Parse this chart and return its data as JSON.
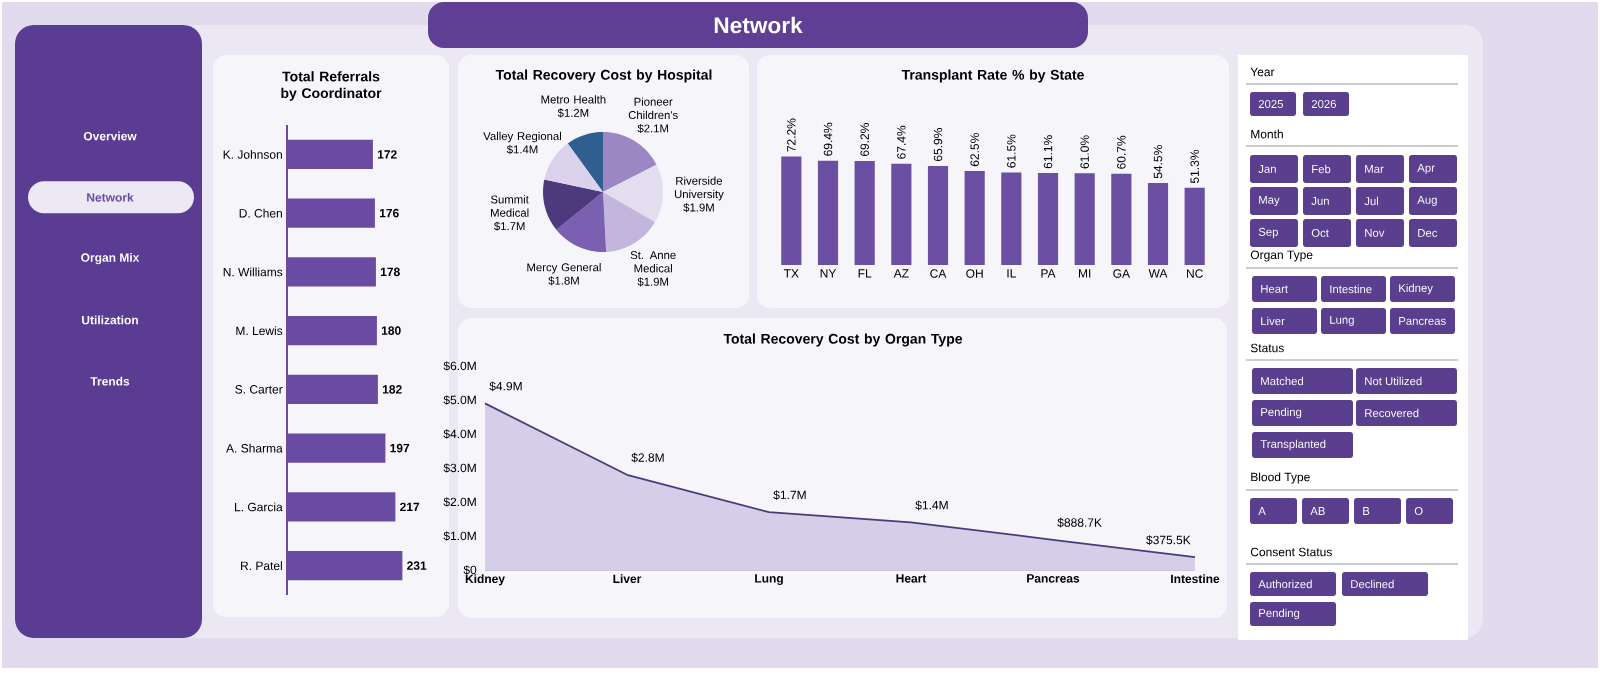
{
  "chart_data": [
    {
      "type": "other",
      "title": "Network"
    },
    {
      "type": "other",
      "annotations": [
        "Overview",
        "Network",
        "Organ Mix",
        "Utilization",
        "Trends"
      ]
    },
    {
      "type": "bar",
      "orientation": "horizontal",
      "title": "Total Referrals by Coordinator",
      "categories": [
        "K. Johnson",
        "D. Chen",
        "N. Williams",
        "M. Lewis",
        "S. Carter",
        "A. Sharma",
        "L. Garcia",
        "R. Patel"
      ],
      "values": [
        172,
        176,
        178,
        180,
        182,
        197,
        217,
        231
      ],
      "color": "#6a4ba3",
      "data_labels": true
    },
    {
      "type": "pie",
      "title": "Total Recovery Cost by Hospital",
      "categories": [
        "Metro Health",
        "Pioneer Children's",
        "Riverside University",
        "St. Anne Medical",
        "Mercy General",
        "Summit Medical",
        "Valley Regional"
      ],
      "values": [
        1.2,
        2.1,
        1.9,
        1.9,
        1.8,
        1.7,
        1.4
      ],
      "value_labels": [
        "$1.2M",
        "$2.1M",
        "$1.9M",
        "$1.9M",
        "$1.8M",
        "$1.7M",
        "$1.4M"
      ],
      "colors": [
        "#2e5f8f",
        "#9b87c4",
        "#e3deef",
        "#c3b6dd",
        "#7b5fb0",
        "#4c3a7d",
        "#d9d2ea"
      ]
    },
    {
      "type": "bar",
      "title": "Transplant Rate % by State",
      "categories": [
        "TX",
        "NY",
        "FL",
        "AZ",
        "CA",
        "OH",
        "IL",
        "PA",
        "MI",
        "GA",
        "WA",
        "NC"
      ],
      "values": [
        72.2,
        69.4,
        69.2,
        67.4,
        65.9,
        62.5,
        61.5,
        61.1,
        61.0,
        60.7,
        54.5,
        51.3
      ],
      "value_labels": [
        "72.2%",
        "69.4%",
        "69.2%",
        "67.4%",
        "65.9%",
        "62.5%",
        "61.5%",
        "61.1%",
        "61.0%",
        "60.7%",
        "54.5%",
        "51.3%"
      ],
      "color": "#6b4fa3"
    },
    {
      "type": "area",
      "title": "Total Recovery Cost by Organ Type",
      "categories": [
        "Kidney",
        "Liver",
        "Lung",
        "Heart",
        "Pancreas",
        "Intestine"
      ],
      "values": [
        4900000,
        2800000,
        1700000,
        1400000,
        888700,
        375500
      ],
      "value_labels": [
        "$4.9M",
        "$2.8M",
        "$1.7M",
        "$1.4M",
        "$888.7K",
        "$375.5K"
      ],
      "color": "#4b3a7a",
      "ylim": [
        0,
        6000000
      ],
      "yticks": [
        {
          "value": 0,
          "label": "$0"
        },
        {
          "value": 1000000,
          "label": "$1.0M"
        },
        {
          "value": 2000000,
          "label": "$2.0M"
        },
        {
          "value": 3000000,
          "label": "$3.0M"
        },
        {
          "value": 4000000,
          "label": "$4.0M"
        },
        {
          "value": 5000000,
          "label": "$5.0M"
        },
        {
          "value": 6000000,
          "label": "$6.0M"
        }
      ]
    },
    {
      "type": "other",
      "title": "Year",
      "annotations": [
        "2025",
        "2026"
      ]
    },
    {
      "type": "other",
      "title": "Month",
      "annotations": [
        "Jan",
        "Feb",
        "Mar",
        "Apr",
        "May",
        "Jun",
        "Jul",
        "Aug",
        "Sep",
        "Oct",
        "Nov",
        "Dec"
      ]
    },
    {
      "type": "other",
      "title": "Organ Type",
      "annotations": [
        "Heart",
        "Intestine",
        "Kidney",
        "Liver",
        "Lung",
        "Pancreas"
      ]
    },
    {
      "type": "other",
      "title": "Status",
      "annotations": [
        "Matched",
        "Not Utilized",
        "Pending",
        "Recovered",
        "Transplanted"
      ]
    },
    {
      "type": "other",
      "title": "Blood Type",
      "annotations": [
        "A",
        "AB",
        "B",
        "O"
      ]
    },
    {
      "type": "other",
      "title": "Consent Status",
      "annotations": [
        "Authorized",
        "Declined",
        "Pending"
      ]
    }
  ]
}
